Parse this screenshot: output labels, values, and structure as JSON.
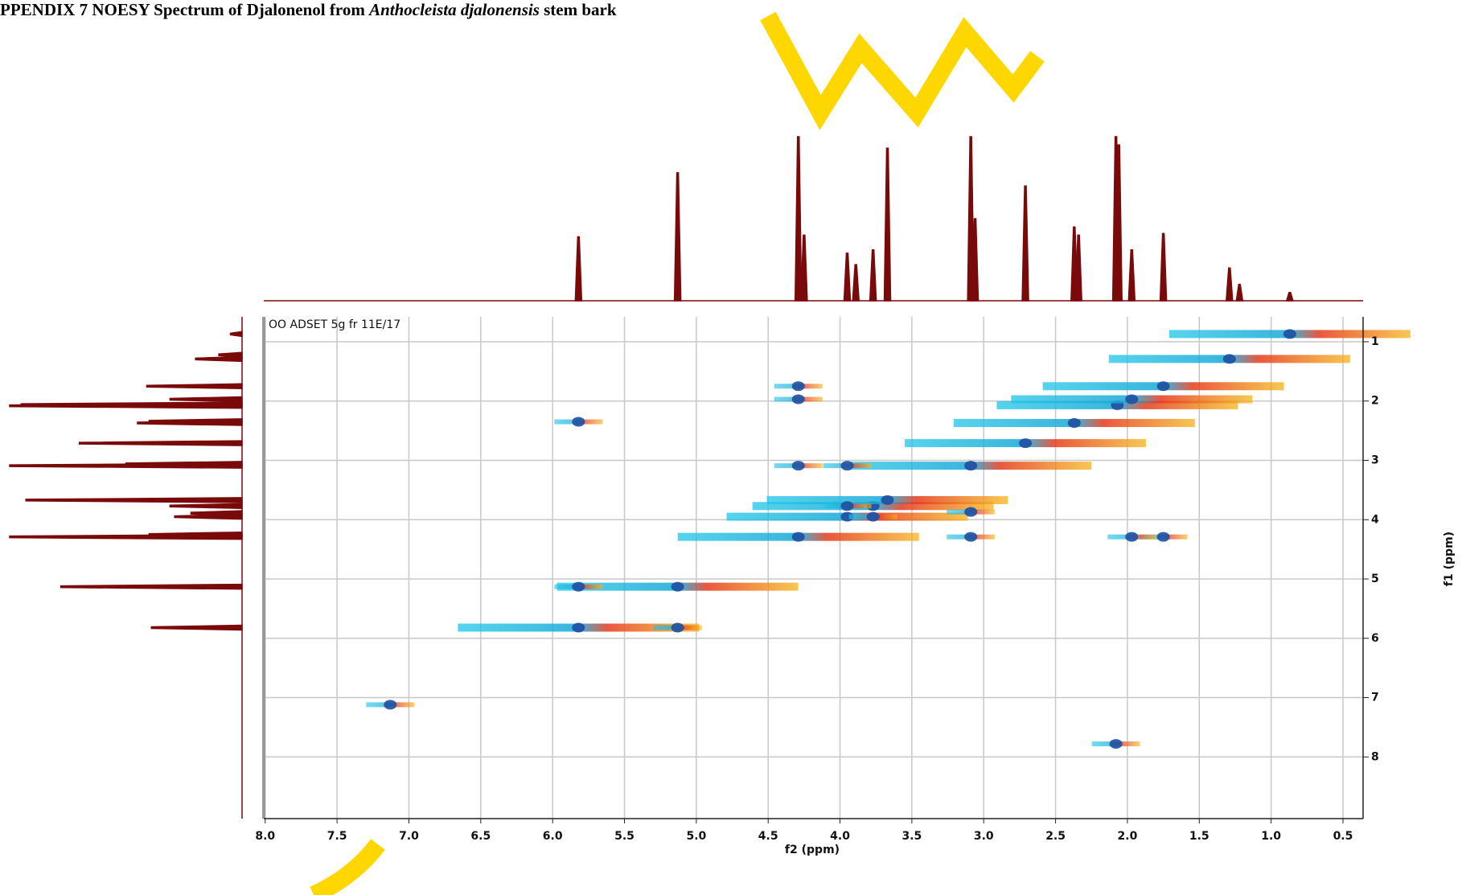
{
  "chart_data": {
    "type": "nmr2d",
    "title": [
      "PPENDIX 7 NOESY Spectrum of Djalonenol from",
      "Anthocleista djalonensis",
      "stem bark"
    ],
    "annotation": "OO ADSET 5g fr 11E/17",
    "xlabel": "f2 (ppm)",
    "ylabel": "f1 (ppm)",
    "xlim": [
      8.01,
      0.36
    ],
    "ylim": [
      0.58,
      9.04
    ],
    "xticks": [
      {
        "value": 8,
        "label": "8.0"
      },
      7.5,
      {
        "value": 7,
        "label": "7.0"
      },
      6.5,
      {
        "value": 6,
        "label": "6.0"
      },
      5.5,
      {
        "value": 5,
        "label": "5.0"
      },
      4.5,
      {
        "value": 4,
        "label": "4.0"
      },
      3.5,
      {
        "value": 3,
        "label": "3.0"
      },
      2.5,
      {
        "value": 2,
        "label": "2.0"
      },
      1.5,
      {
        "value": 1,
        "label": "1.0"
      },
      0.5
    ],
    "yticks": [
      1,
      2,
      3,
      4,
      5,
      6,
      7,
      8
    ],
    "grid": true,
    "projection": {
      "color": "#7a0a0a",
      "ylim": [
        0,
        100
      ],
      "x": [
        5.82,
        5.13,
        4.29,
        4.25,
        3.95,
        3.89,
        3.77,
        3.67,
        3.09,
        3.06,
        2.71,
        2.37,
        2.34,
        2.08,
        2.06,
        1.97,
        1.75,
        1.29,
        1.22,
        0.87
      ],
      "values": [
        39,
        78,
        100,
        40,
        29,
        22,
        31,
        93,
        100,
        50,
        70,
        45,
        40,
        100,
        95,
        31,
        41,
        20,
        10,
        5
      ]
    },
    "cross_peaks": {
      "color": "#1f4fa0",
      "x": [
        5.82,
        5.13,
        4.29,
        3.95,
        3.77,
        3.67,
        3.09,
        2.71,
        2.37,
        2.07,
        1.97,
        1.75,
        1.29,
        0.87,
        5.82,
        5.13,
        4.29,
        4.29,
        1.75,
        1.97,
        4.29,
        3.09,
        3.95,
        3.09,
        3.95,
        3.77,
        5.82,
        7.13,
        2.08
      ],
      "y": [
        5.82,
        5.13,
        4.29,
        3.95,
        3.77,
        3.67,
        3.09,
        2.71,
        2.37,
        2.07,
        1.97,
        1.75,
        1.29,
        0.87,
        5.13,
        5.82,
        1.75,
        1.97,
        4.29,
        4.29,
        3.09,
        4.29,
        3.09,
        3.87,
        3.77,
        3.95,
        2.35,
        7.12,
        7.78
      ]
    }
  }
}
